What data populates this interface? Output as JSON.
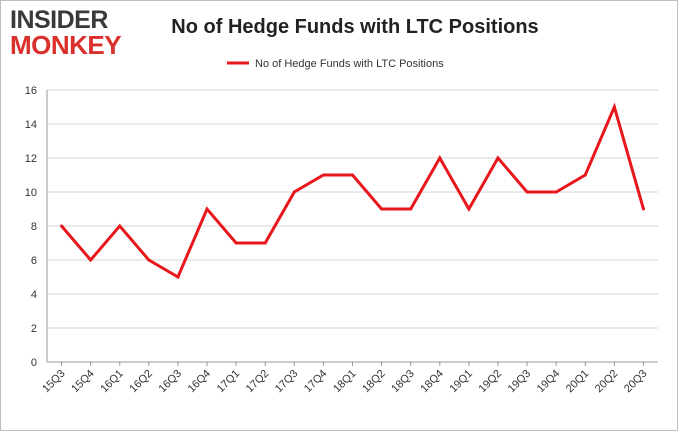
{
  "logo": {
    "line1": "INSIDER",
    "line2": "MONKEY"
  },
  "chart_data": {
    "type": "line",
    "title": "No of Hedge Funds with LTC Positions",
    "xlabel": "",
    "ylabel": "",
    "categories": [
      "15Q3",
      "15Q4",
      "16Q1",
      "16Q2",
      "16Q3",
      "16Q4",
      "17Q1",
      "17Q2",
      "17Q3",
      "17Q4",
      "18Q1",
      "18Q2",
      "18Q3",
      "18Q4",
      "19Q1",
      "19Q2",
      "19Q3",
      "19Q4",
      "20Q1",
      "20Q2",
      "20Q3"
    ],
    "series": [
      {
        "name": "No of Hedge Funds with LTC Positions",
        "color": "#e8171c",
        "values": [
          8,
          6,
          8,
          6,
          5,
          9,
          7,
          7,
          10,
          11,
          11,
          9,
          9,
          12,
          9,
          12,
          10,
          10,
          11,
          15,
          9
        ]
      }
    ],
    "ylim": [
      0,
      16
    ],
    "yticks": [
      0,
      2,
      4,
      6,
      8,
      10,
      12,
      14,
      16
    ],
    "grid": true,
    "legend_position": "top-center"
  }
}
